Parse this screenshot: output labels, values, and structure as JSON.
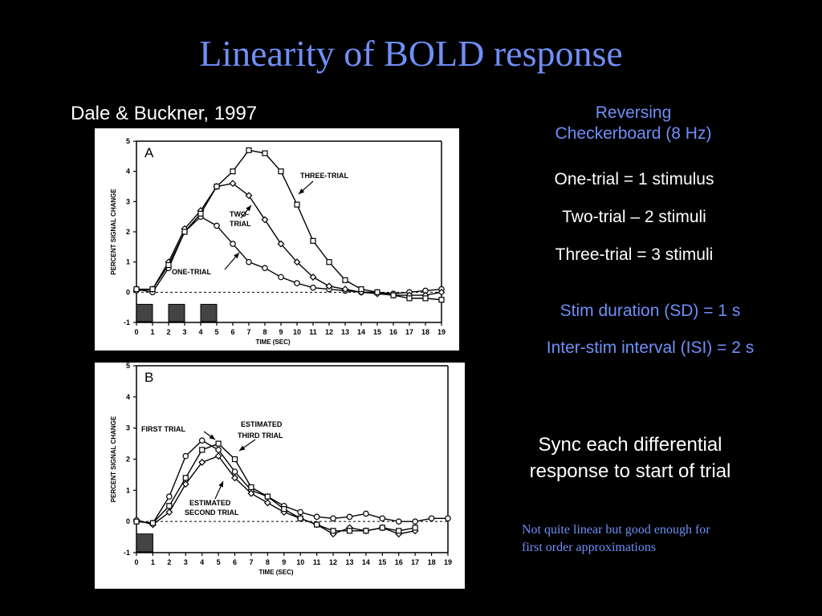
{
  "slide": {
    "title": "Linearity of BOLD response",
    "citation": "Dale & Buckner, 1997",
    "stimulus_line1": "Reversing",
    "stimulus_line2": "Checkerboard (8 Hz)",
    "def_one": "One-trial = 1 stimulus",
    "def_two": "Two-trial – 2 stimuli",
    "def_three": "Three-trial = 3 stimuli",
    "sd": "Stim duration (SD) = 1 s",
    "isi": "Inter-stim interval (ISI) = 2 s",
    "sync_line1": "Sync each differential",
    "sync_line2": "response to start of trial",
    "note_line1": "Not quite linear but good enough for",
    "note_line2": "first order approximations"
  },
  "chart_data": [
    {
      "type": "line",
      "panel": "A",
      "xlabel": "TIME (SEC)",
      "ylabel": "PERCENT SIGNAL CHANGE",
      "xlim": [
        0,
        19
      ],
      "ylim": [
        -1,
        5
      ],
      "xticks": [
        0,
        1,
        2,
        3,
        4,
        5,
        6,
        7,
        8,
        9,
        10,
        11,
        12,
        13,
        14,
        15,
        16,
        17,
        18,
        19
      ],
      "yticks": [
        -1,
        0,
        1,
        2,
        3,
        4,
        5
      ],
      "stimuli": [
        [
          0,
          1
        ],
        [
          2,
          3
        ],
        [
          4,
          5
        ]
      ],
      "x": [
        0,
        1,
        2,
        3,
        4,
        5,
        6,
        7,
        8,
        9,
        10,
        11,
        12,
        13,
        14,
        15,
        16,
        17,
        18,
        19
      ],
      "series": [
        {
          "name": "ONE-TRIAL",
          "marker": "circle",
          "values": [
            0.1,
            0.0,
            0.8,
            2.0,
            2.5,
            2.2,
            1.6,
            1.0,
            0.8,
            0.5,
            0.3,
            0.15,
            0.1,
            0.05,
            0.0,
            0.0,
            -0.05,
            0.0,
            0.05,
            0.1
          ]
        },
        {
          "name": "TWO-TRIAL",
          "marker": "diamond",
          "values": [
            0.05,
            0.1,
            1.0,
            2.1,
            2.7,
            3.5,
            3.6,
            3.2,
            2.4,
            1.6,
            1.0,
            0.5,
            0.2,
            0.1,
            0.0,
            -0.05,
            -0.1,
            -0.1,
            -0.1,
            0.0
          ]
        },
        {
          "name": "THREE-TRIAL",
          "marker": "square",
          "values": [
            0.1,
            0.1,
            0.9,
            2.0,
            2.6,
            3.5,
            4.0,
            4.7,
            4.6,
            4.0,
            2.9,
            1.7,
            1.0,
            0.4,
            0.1,
            0.0,
            -0.1,
            -0.2,
            -0.2,
            -0.25
          ]
        }
      ],
      "annotations": [
        "THREE-TRIAL",
        "TWO-",
        "TRIAL",
        "ONE-TRIAL"
      ]
    },
    {
      "type": "line",
      "panel": "B",
      "xlabel": "TIME (SEC)",
      "ylabel": "PERCENT SIGNAL CHANGE",
      "xlim": [
        0,
        19
      ],
      "ylim": [
        -1,
        5
      ],
      "xticks": [
        0,
        1,
        2,
        3,
        4,
        5,
        6,
        7,
        8,
        9,
        10,
        11,
        12,
        13,
        14,
        15,
        16,
        17,
        18,
        19
      ],
      "yticks": [
        -1,
        0,
        1,
        2,
        3,
        4,
        5
      ],
      "stimuli": [
        [
          0,
          1
        ]
      ],
      "series": [
        {
          "name": "FIRST TRIAL",
          "marker": "circle",
          "x": [
            0,
            1,
            2,
            3,
            4,
            5,
            6,
            7,
            8,
            9,
            10,
            11,
            12,
            13,
            14,
            15,
            16,
            17,
            18,
            19
          ],
          "values": [
            0.0,
            -0.05,
            0.8,
            2.1,
            2.6,
            2.3,
            1.6,
            1.0,
            0.8,
            0.5,
            0.3,
            0.15,
            0.1,
            0.15,
            0.25,
            0.1,
            0.0,
            0.0,
            0.1,
            0.1
          ]
        },
        {
          "name": "ESTIMATED SECOND TRIAL",
          "marker": "diamond",
          "x": [
            0,
            1,
            2,
            3,
            4,
            5,
            6,
            7,
            8,
            9,
            10,
            11,
            12,
            13,
            14,
            15,
            16,
            17
          ],
          "values": [
            0.05,
            -0.1,
            0.3,
            1.2,
            1.9,
            2.1,
            1.4,
            0.9,
            0.6,
            0.3,
            0.1,
            -0.1,
            -0.4,
            -0.2,
            -0.3,
            -0.2,
            -0.4,
            -0.3
          ]
        },
        {
          "name": "ESTIMATED THIRD TRIAL",
          "marker": "square",
          "x": [
            0,
            1,
            2,
            3,
            4,
            5,
            6,
            7,
            8,
            9,
            10,
            11,
            12,
            13,
            14,
            15,
            16,
            17
          ],
          "values": [
            0.0,
            -0.05,
            0.5,
            1.4,
            2.3,
            2.5,
            2.0,
            1.1,
            0.8,
            0.4,
            0.1,
            -0.1,
            -0.3,
            -0.3,
            -0.3,
            -0.2,
            -0.3,
            -0.2
          ]
        }
      ],
      "annotations": [
        "FIRST TRIAL",
        "ESTIMATED",
        "THIRD TRIAL",
        "ESTIMATED",
        "SECOND TRIAL"
      ]
    }
  ]
}
